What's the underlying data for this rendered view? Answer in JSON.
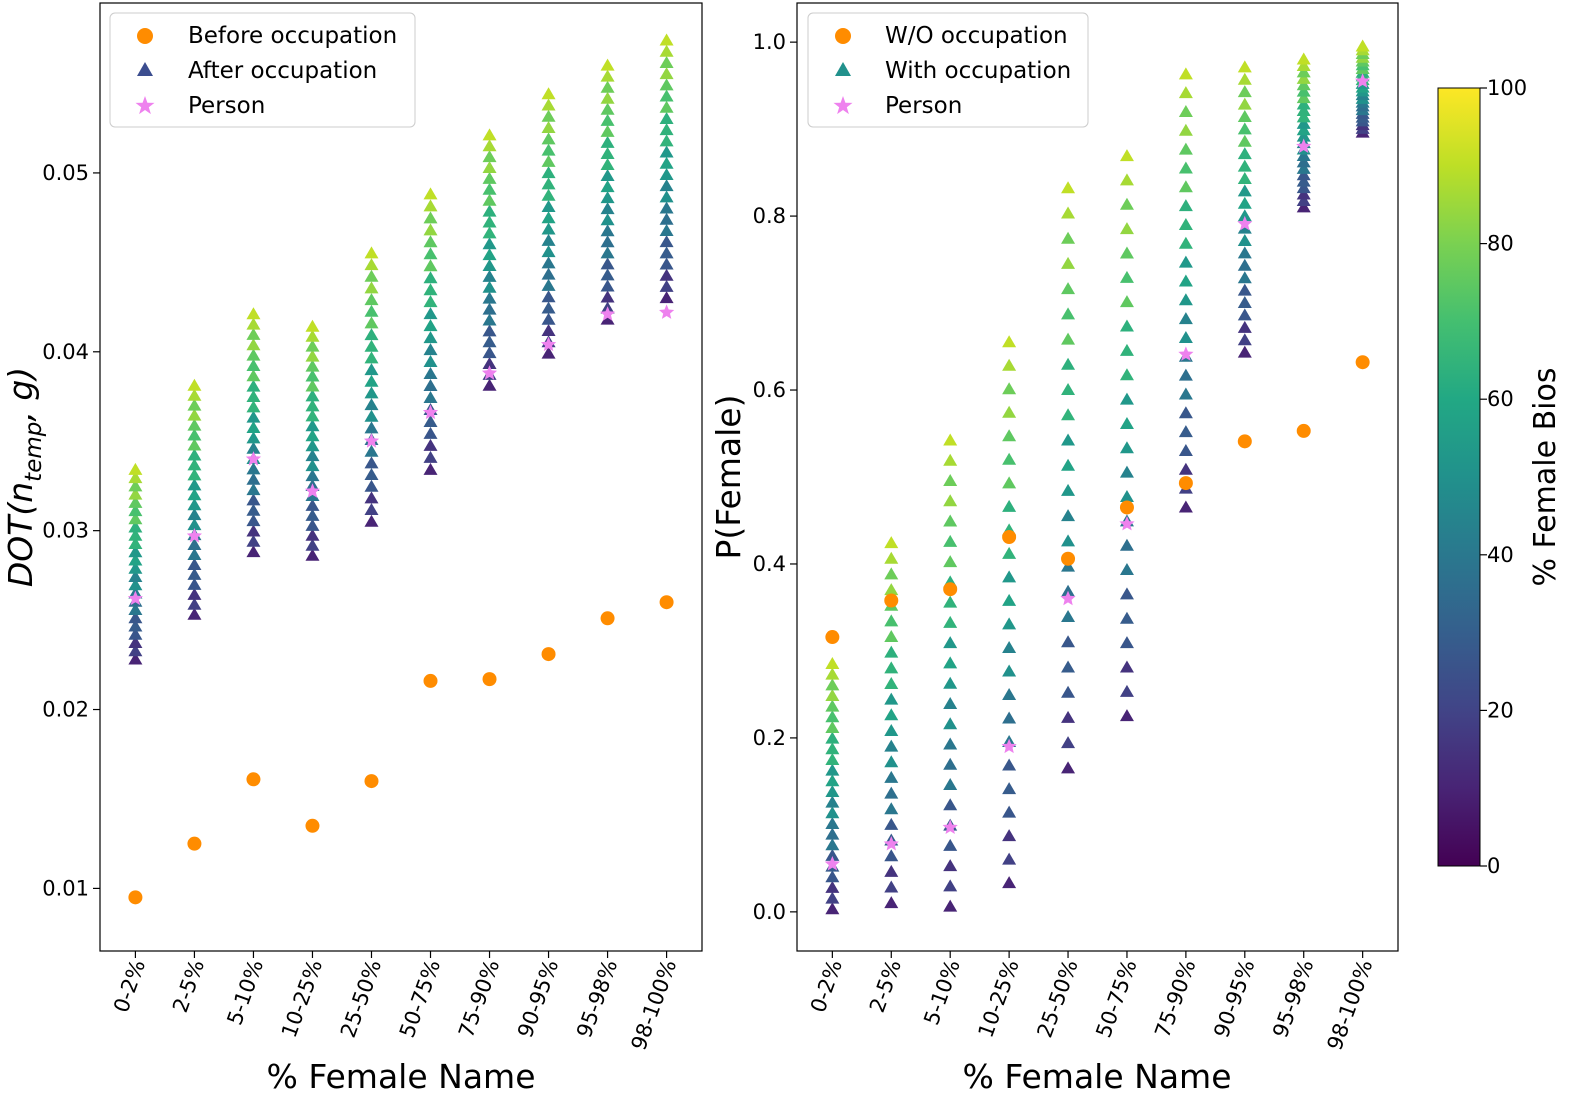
{
  "chart_data": [
    {
      "type": "scatter",
      "categories": [
        "0-2%",
        "2-5%",
        "5-10%",
        "10-25%",
        "25-50%",
        "50-75%",
        "75-90%",
        "90-95%",
        "95-98%",
        "98-100%"
      ],
      "xlabel": "% Female Name",
      "ylabel": "DOT(n_temp, g)",
      "ylabel_main": "DOT(n",
      "ylabel_sub": "temp",
      "ylabel_tail": ", g)",
      "ylim": [
        0.0065,
        0.0595
      ],
      "yticks": [
        0.01,
        0.02,
        0.03,
        0.04,
        0.05
      ],
      "ytick_labels": [
        "0.01",
        "0.02",
        "0.03",
        "0.04",
        "0.05"
      ],
      "legend": [
        "Before occupation",
        "After occupation",
        "Person"
      ],
      "legend_position": "top-left",
      "baseline": {
        "name": "Before occupation",
        "color": "#ff8c00",
        "values": [
          0.0095,
          0.0125,
          0.0161,
          0.0135,
          0.016,
          0.0216,
          0.0217,
          0.0231,
          0.0251,
          0.026
        ]
      },
      "person": {
        "name": "Person",
        "color": "#ee82ee",
        "values": [
          0.0262,
          0.0297,
          0.034,
          0.0322,
          0.035,
          0.0366,
          0.0388,
          0.0404,
          0.0421,
          0.0422
        ]
      },
      "occupation": {
        "name": "After occupation",
        "top_values": [
          0.0334,
          0.0381,
          0.0421,
          0.0414,
          0.0455,
          0.0488,
          0.0521,
          0.0544,
          0.056,
          0.0574
        ],
        "bottom_values": [
          0.0228,
          0.0253,
          0.0288,
          0.0286,
          0.0305,
          0.0334,
          0.0381,
          0.0399,
          0.0418,
          0.043
        ]
      }
    },
    {
      "type": "scatter",
      "categories": [
        "0-2%",
        "2-5%",
        "5-10%",
        "10-25%",
        "25-50%",
        "50-75%",
        "75-90%",
        "90-95%",
        "95-98%",
        "98-100%"
      ],
      "xlabel": "% Female Name",
      "ylabel": "P(Female)",
      "ylim": [
        -0.045,
        1.045
      ],
      "yticks": [
        0.0,
        0.2,
        0.4,
        0.6,
        0.8,
        1.0
      ],
      "ytick_labels": [
        "0.0",
        "0.2",
        "0.4",
        "0.6",
        "0.8",
        "1.0"
      ],
      "legend": [
        "W/O occupation",
        "With occupation",
        "Person"
      ],
      "legend_position": "top-left",
      "baseline": {
        "name": "W/O occupation",
        "color": "#ff8c00",
        "values": [
          0.316,
          0.358,
          0.371,
          0.431,
          0.406,
          0.465,
          0.493,
          0.541,
          0.553,
          0.632
        ]
      },
      "person": {
        "name": "Person",
        "color": "#ee82ee",
        "values": [
          0.055,
          0.078,
          0.097,
          0.19,
          0.36,
          0.446,
          0.641,
          0.791,
          0.88,
          0.955
        ]
      },
      "occupation": {
        "name": "With occupation",
        "top_values": [
          0.285,
          0.424,
          0.542,
          0.655,
          0.832,
          0.869,
          0.963,
          0.971,
          0.98,
          0.995
        ],
        "bottom_values": [
          0.003,
          0.01,
          0.006,
          0.033,
          0.165,
          0.225,
          0.465,
          0.643,
          0.81,
          0.896
        ]
      }
    }
  ],
  "colorbar": {
    "label": "% Female Bios",
    "range": [
      0,
      100
    ],
    "ticks": [
      0,
      20,
      40,
      60,
      80,
      100
    ],
    "tick_labels": [
      "0",
      "20",
      "40",
      "60",
      "80",
      "100"
    ]
  },
  "colors": {
    "baseline": "#ff8c00",
    "person": "#ee82ee",
    "legend_triangle_left": "#3b4d8f",
    "legend_triangle_right": "#21918c"
  }
}
